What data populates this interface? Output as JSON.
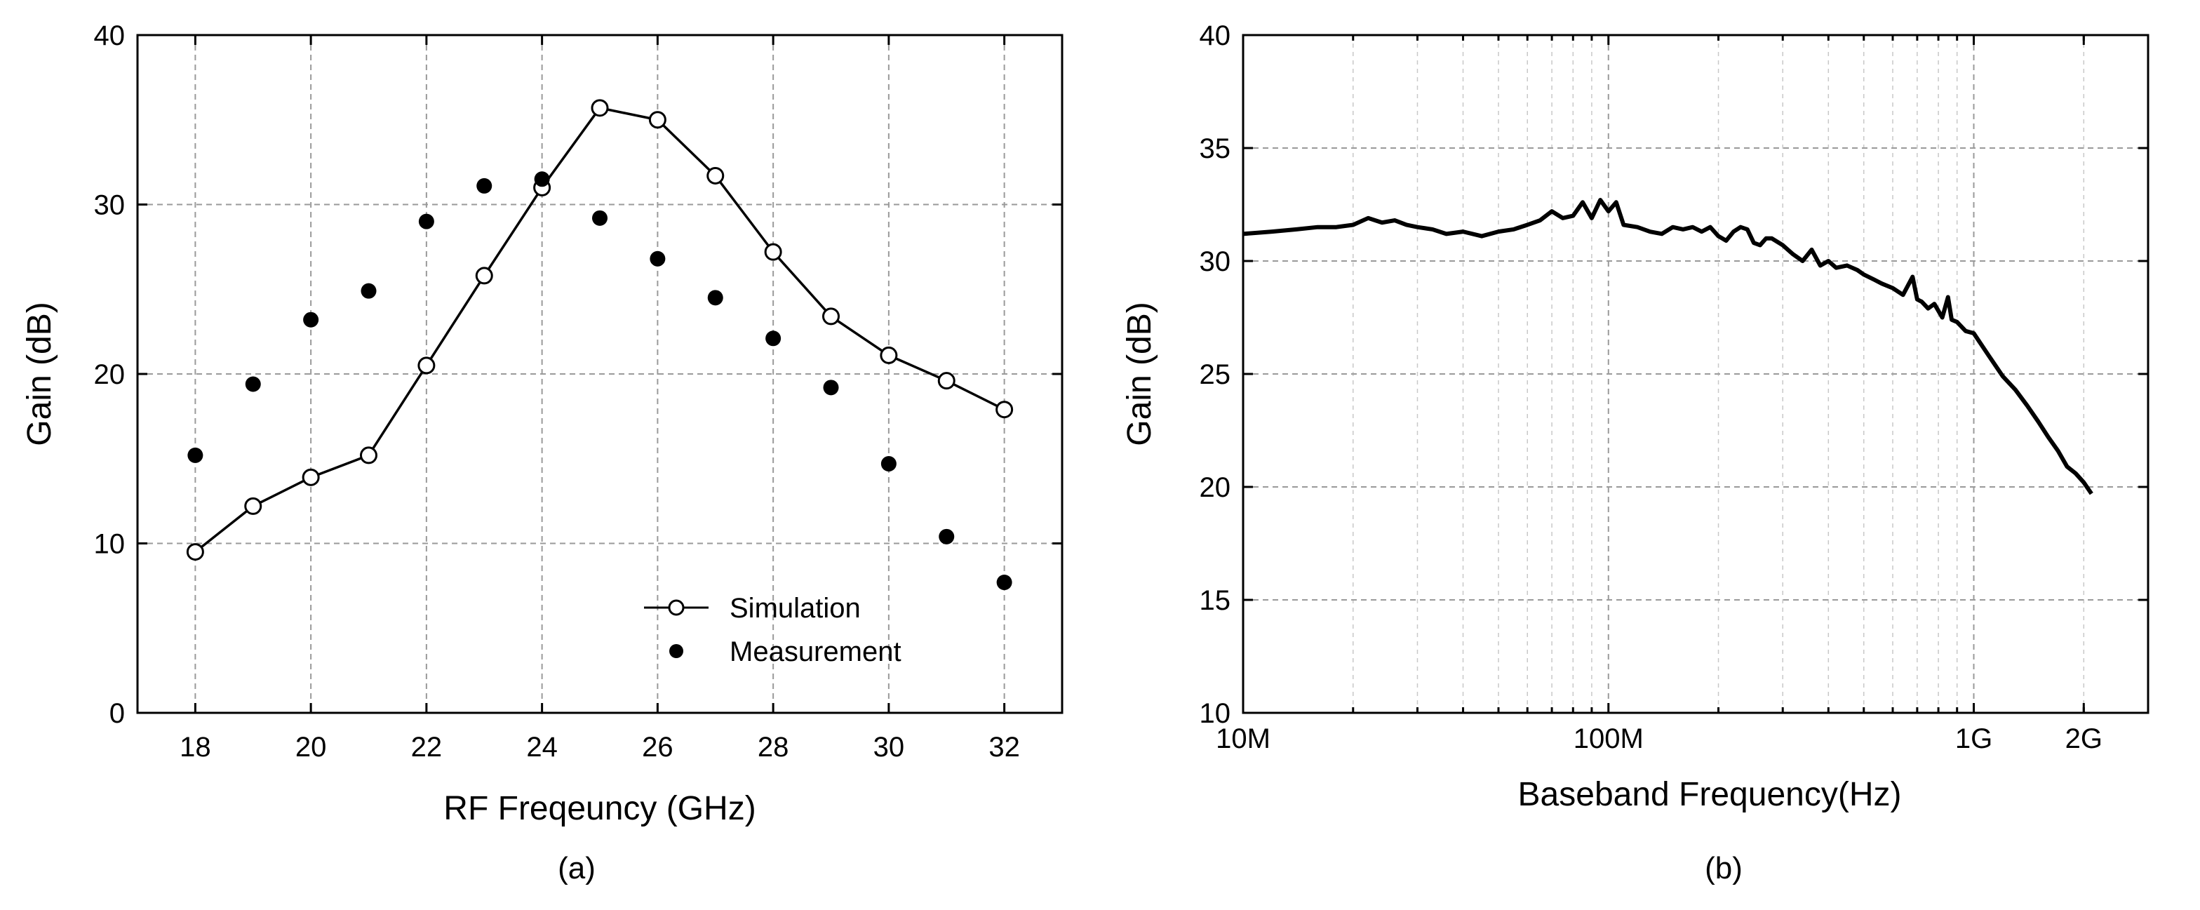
{
  "chart_data": [
    {
      "type": "line",
      "panel_label": "(a)",
      "xlabel": "RF Freqeuncy (GHz)",
      "ylabel": "Gain (dB)",
      "xlim": [
        17,
        33
      ],
      "ylim": [
        0,
        40
      ],
      "xticks": [
        18,
        20,
        22,
        24,
        26,
        28,
        30,
        32
      ],
      "yticks": [
        0,
        10,
        20,
        30,
        40
      ],
      "grid": true,
      "legend_position": "bottom-right",
      "series": [
        {
          "name": "Simulation",
          "style": "line-open-circle",
          "x": [
            18,
            19,
            20,
            21,
            22,
            23,
            24,
            25,
            26,
            27,
            28,
            29,
            30,
            31,
            32
          ],
          "values": [
            9.5,
            12.2,
            13.9,
            15.2,
            20.5,
            25.8,
            31.0,
            35.7,
            35.0,
            31.7,
            27.2,
            23.4,
            21.1,
            19.6,
            17.9
          ]
        },
        {
          "name": "Measurement",
          "style": "filled-circle",
          "x": [
            18,
            19,
            20,
            21,
            22,
            23,
            24,
            25,
            26,
            27,
            28,
            29,
            30,
            31,
            32
          ],
          "values": [
            15.2,
            19.4,
            23.2,
            24.9,
            29.0,
            31.1,
            31.5,
            29.2,
            26.8,
            24.5,
            22.1,
            19.2,
            14.7,
            10.4,
            7.7
          ]
        }
      ]
    },
    {
      "type": "line",
      "panel_label": "(b)",
      "xlabel": "Baseband Frequency(Hz)",
      "ylabel": "Gain (dB)",
      "xscale": "log",
      "xlim": [
        10000000,
        3000000000
      ],
      "ylim": [
        10,
        40
      ],
      "xticks": [
        10000000,
        100000000,
        1000000000,
        2000000000
      ],
      "xtick_labels": [
        "10M",
        "100M",
        "1G",
        "2G"
      ],
      "yticks": [
        10,
        15,
        20,
        25,
        30,
        35,
        40
      ],
      "grid": true,
      "series": [
        {
          "name": "Gain",
          "x": [
            10000000,
            12000000,
            14000000,
            16000000,
            18000000,
            20000000,
            22000000,
            24000000,
            26000000,
            28000000,
            30000000,
            33000000,
            36000000,
            40000000,
            45000000,
            50000000,
            55000000,
            60000000,
            65000000,
            70000000,
            75000000,
            80000000,
            85000000,
            90000000,
            95000000,
            100000000,
            105000000,
            110000000,
            120000000,
            130000000,
            140000000,
            150000000,
            160000000,
            170000000,
            180000000,
            190000000,
            200000000,
            210000000,
            220000000,
            230000000,
            240000000,
            250000000,
            260000000,
            270000000,
            280000000,
            300000000,
            320000000,
            340000000,
            360000000,
            380000000,
            400000000,
            420000000,
            450000000,
            480000000,
            500000000,
            530000000,
            560000000,
            600000000,
            640000000,
            680000000,
            700000000,
            720000000,
            750000000,
            780000000,
            820000000,
            850000000,
            870000000,
            900000000,
            950000000,
            1000000000,
            1100000000,
            1200000000,
            1300000000,
            1400000000,
            1500000000,
            1600000000,
            1700000000,
            1800000000,
            1900000000,
            2000000000,
            2100000000
          ],
          "values": [
            31.2,
            31.3,
            31.4,
            31.5,
            31.5,
            31.6,
            31.9,
            31.7,
            31.8,
            31.6,
            31.5,
            31.4,
            31.2,
            31.3,
            31.1,
            31.3,
            31.4,
            31.6,
            31.8,
            32.2,
            31.9,
            32.0,
            32.6,
            31.9,
            32.7,
            32.2,
            32.6,
            31.6,
            31.5,
            31.3,
            31.2,
            31.5,
            31.4,
            31.5,
            31.3,
            31.5,
            31.1,
            30.9,
            31.3,
            31.5,
            31.4,
            30.8,
            30.7,
            31.0,
            31.0,
            30.7,
            30.3,
            30.0,
            30.5,
            29.8,
            30.0,
            29.7,
            29.8,
            29.6,
            29.4,
            29.2,
            29.0,
            28.8,
            28.5,
            29.3,
            28.3,
            28.2,
            27.9,
            28.1,
            27.5,
            28.4,
            27.4,
            27.3,
            26.9,
            26.8,
            25.8,
            24.9,
            24.3,
            23.6,
            22.9,
            22.2,
            21.6,
            20.9,
            20.6,
            20.2,
            19.7
          ]
        }
      ]
    }
  ]
}
